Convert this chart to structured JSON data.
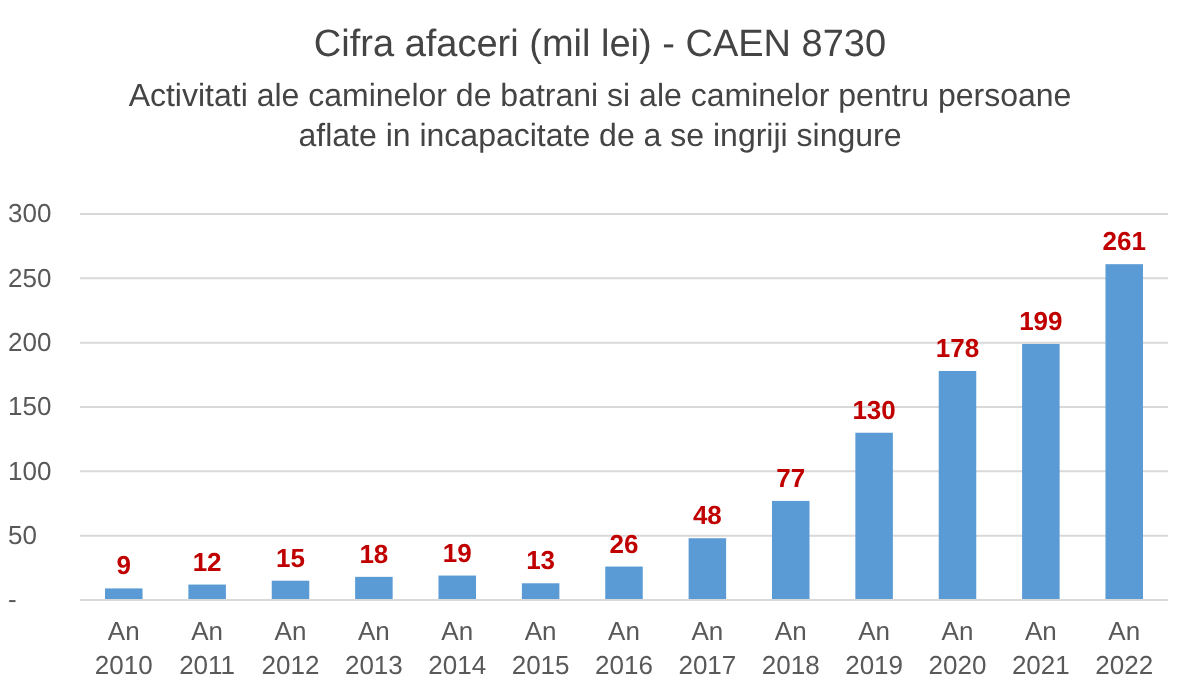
{
  "chart_data": {
    "type": "bar",
    "title": "Cifra afaceri (mil lei) - CAEN 8730",
    "subtitle": "Activitati ale caminelor de batrani si ale caminelor pentru persoane aflate in incapacitate de a se ingriji singure",
    "categories": [
      "An 2010",
      "An 2011",
      "An 2012",
      "An 2013",
      "An 2014",
      "An 2015",
      "An 2016",
      "An 2017",
      "An 2018",
      "An 2019",
      "An 2020",
      "An 2021",
      "An 2022"
    ],
    "values": [
      9,
      12,
      15,
      18,
      19,
      13,
      26,
      48,
      77,
      130,
      178,
      199,
      261
    ],
    "color": "#5b9bd5",
    "ylim": [
      0,
      300
    ],
    "yticks": [
      {
        "value": 0,
        "label": "-"
      },
      50,
      100,
      150,
      200,
      250,
      300
    ],
    "grid": "y",
    "data_labels": true
  }
}
